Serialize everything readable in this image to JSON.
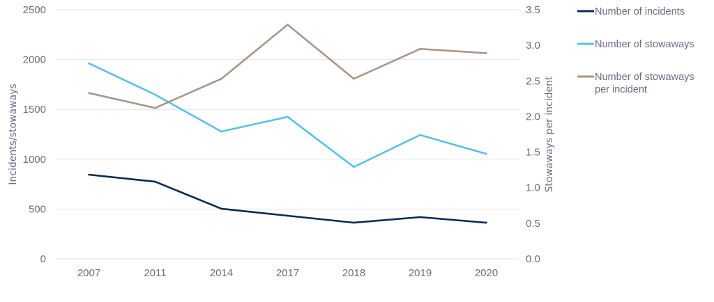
{
  "chart_data": {
    "type": "line",
    "categories": [
      "2007",
      "2011",
      "2014",
      "2017",
      "2018",
      "2019",
      "2020"
    ],
    "series": [
      {
        "name": "Number of incidents",
        "axis": "left",
        "color": "#0b2a52",
        "values": [
          845,
          775,
          503,
          433,
          363,
          419,
          363
        ]
      },
      {
        "name": "Number of stowaways",
        "axis": "left",
        "color": "#58c2e6",
        "values": [
          1962,
          1648,
          1278,
          1425,
          922,
          1243,
          1054
        ]
      },
      {
        "name": "Number of stowaways per incident",
        "name_lines": [
          "Number of stowaways",
          "per incident"
        ],
        "axis": "right",
        "color": "#a8968a",
        "values": [
          2.33,
          2.12,
          2.53,
          3.29,
          2.53,
          2.95,
          2.89
        ]
      }
    ],
    "ylabel": "Incidents/stowaways",
    "y2label": "Stowaways per incident",
    "ylim": [
      0,
      2500
    ],
    "y2lim": [
      0,
      3.5
    ],
    "yticks": [
      "0",
      "500",
      "1000",
      "1500",
      "2000",
      "2500"
    ],
    "y2ticks": [
      "0.0",
      "0.5",
      "1.0",
      "1.5",
      "2.0",
      "2.5",
      "3.0",
      "3.5"
    ],
    "grid": true,
    "legend_position": "right"
  }
}
